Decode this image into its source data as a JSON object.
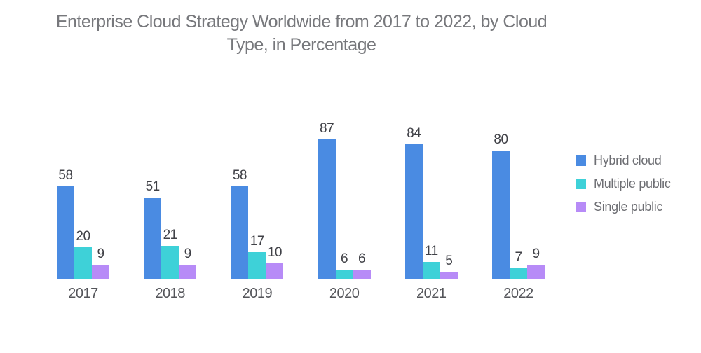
{
  "chart_data": {
    "type": "bar",
    "title": "Enterprise Cloud Strategy Worldwide from 2017 to 2022, by Cloud Type, in Percentage",
    "title_lines": [
      "Enterprise Cloud Strategy Worldwide from 2017 to 2022, by Cloud",
      "Type, in Percentage"
    ],
    "categories": [
      "2017",
      "2018",
      "2019",
      "2020",
      "2021",
      "2022"
    ],
    "series": [
      {
        "name": "Hybrid cloud",
        "color": "#4A8BE2",
        "values": [
          58,
          51,
          58,
          87,
          84,
          80
        ]
      },
      {
        "name": "Multiple public",
        "color": "#3ED1D8",
        "values": [
          20,
          21,
          17,
          6,
          11,
          7
        ]
      },
      {
        "name": "Single public",
        "color": "#B78BF7",
        "values": [
          9,
          9,
          10,
          6,
          5,
          9
        ]
      }
    ],
    "xlabel": "",
    "ylabel": "",
    "ylim": [
      0,
      100
    ],
    "unit": "percent",
    "grid": false,
    "axes_visible": false,
    "data_labels": true,
    "legend_position": "right"
  }
}
